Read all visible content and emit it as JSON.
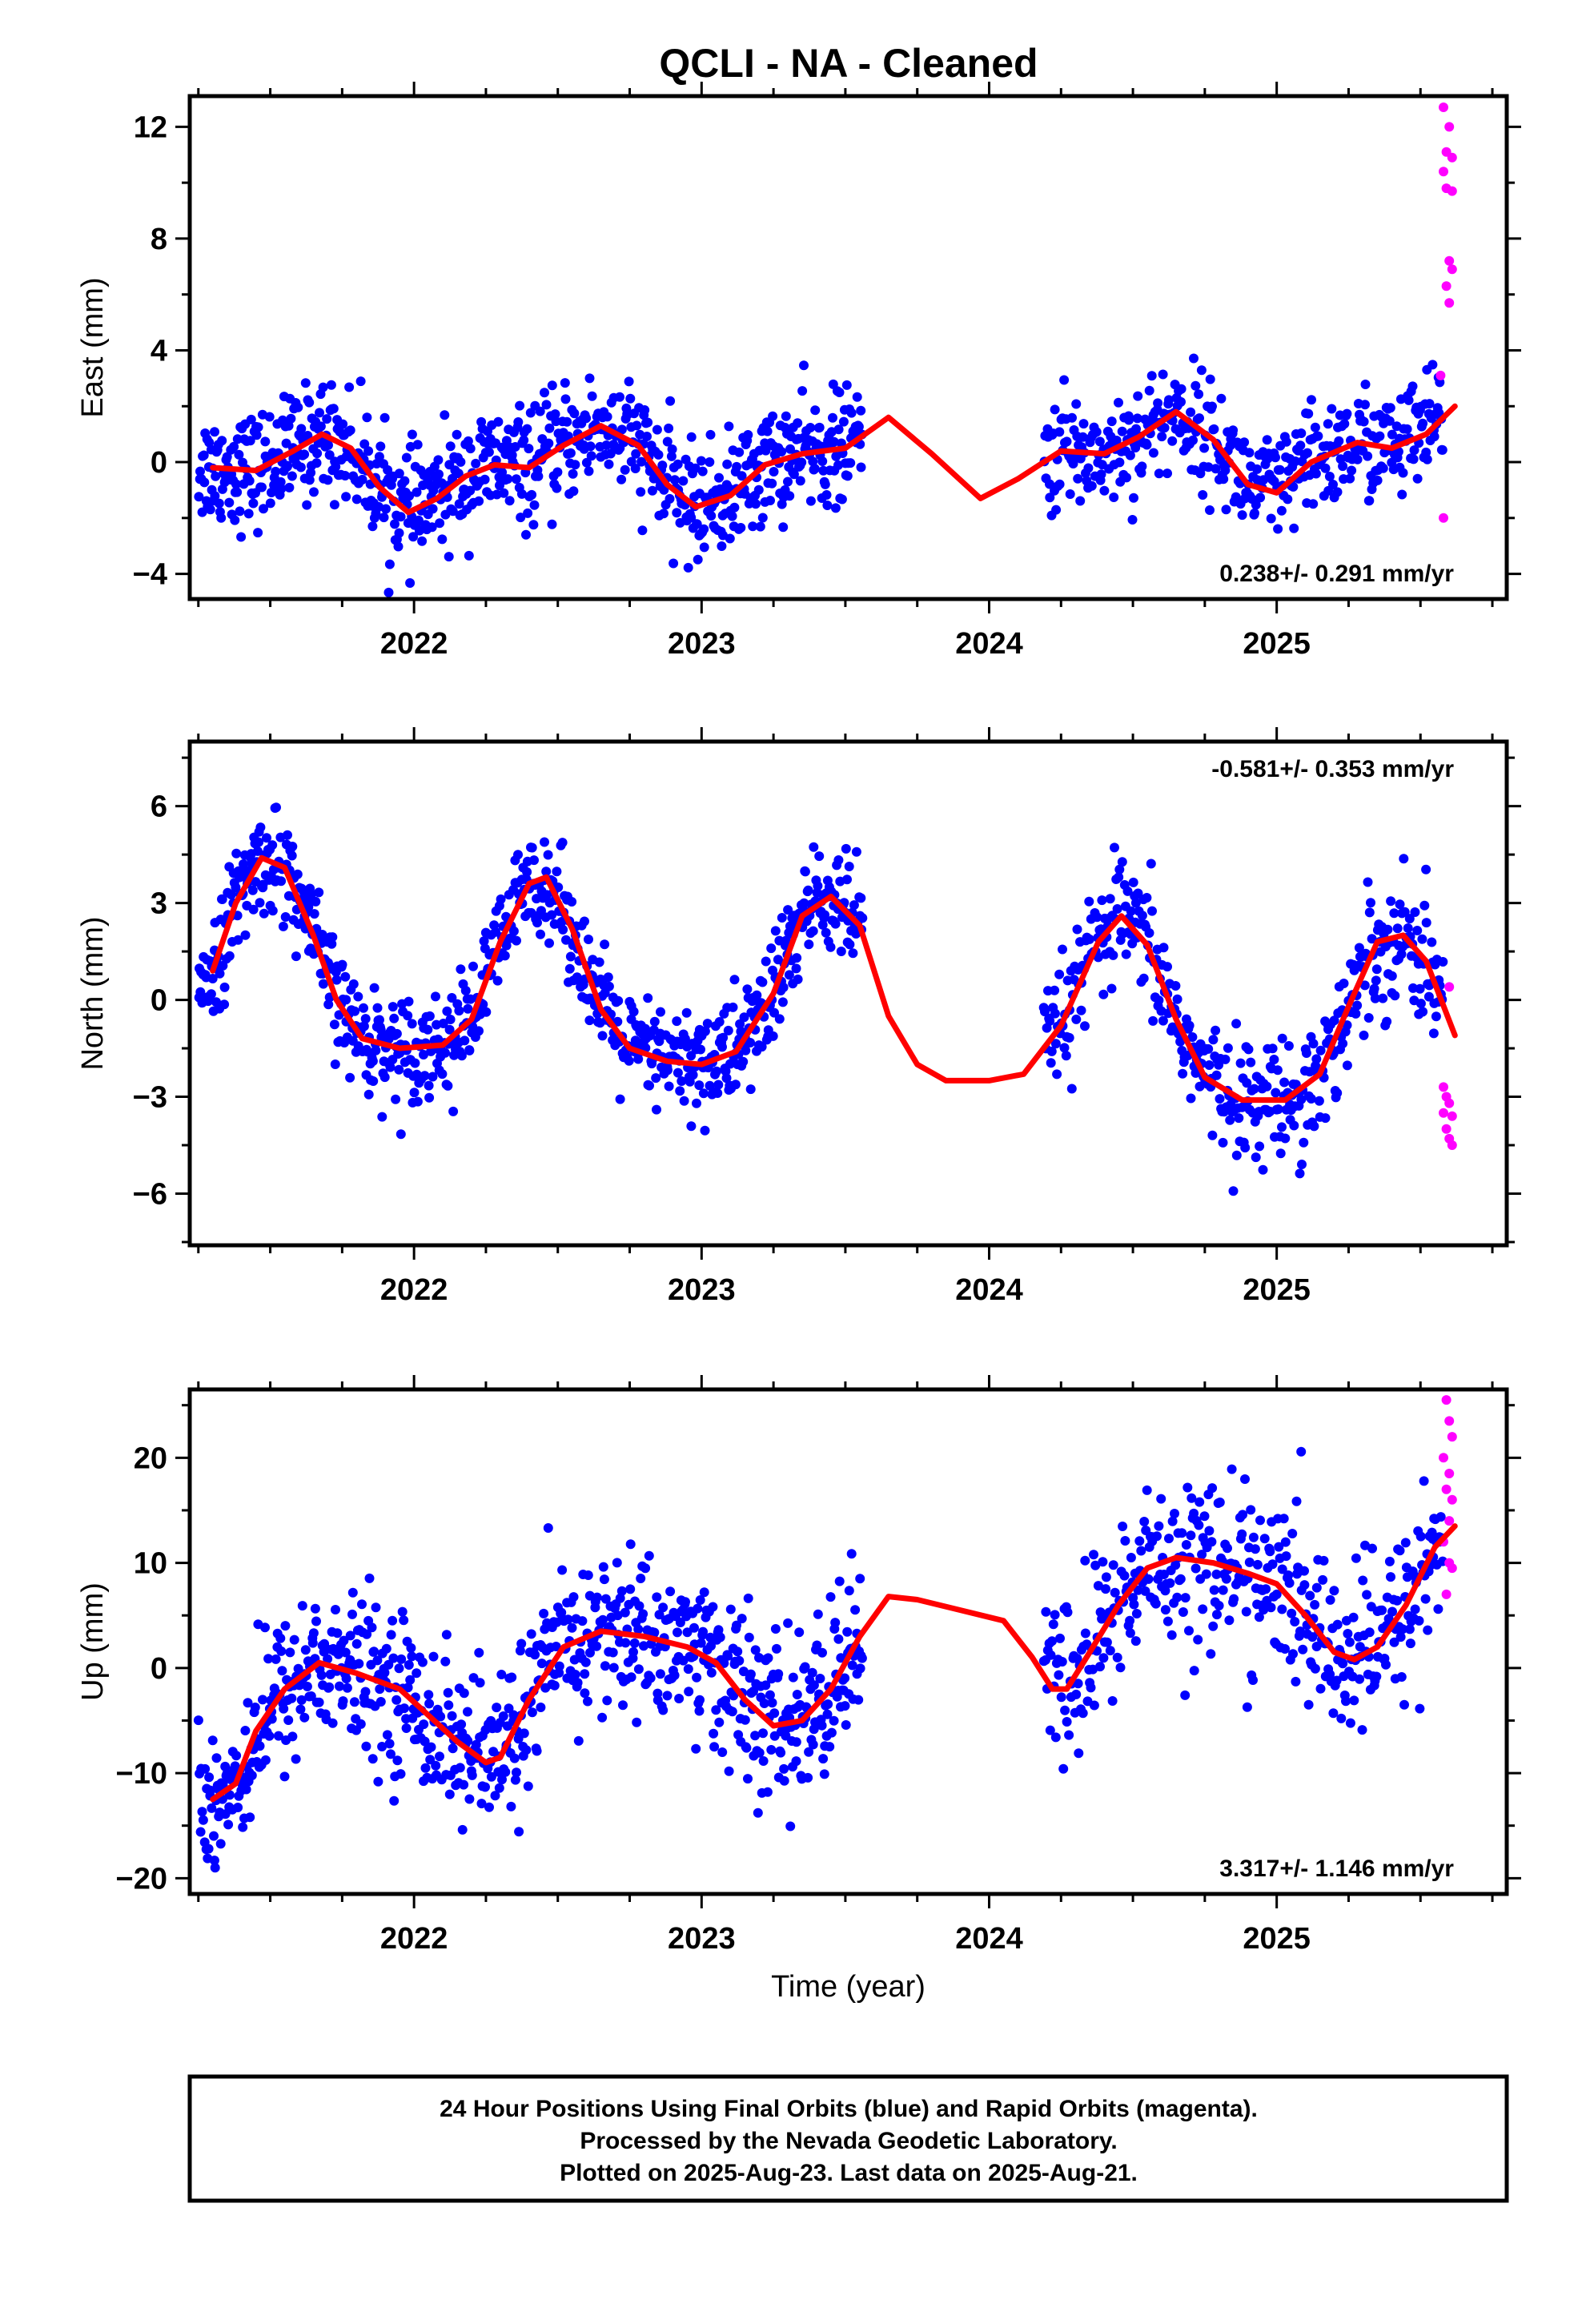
{
  "title": "QCLI  - NA - Cleaned",
  "footer": {
    "line1": "24 Hour Positions Using Final Orbits (blue) and Rapid Orbits (magenta).",
    "line2": "Processed by the Nevada Geodetic Laboratory.",
    "line3": "Plotted on 2025-Aug-23. Last data on 2025-Aug-21."
  },
  "colors": {
    "final": "#0000ff",
    "rapid": "#ff00ff",
    "model": "#ff0000",
    "axis": "#000000"
  },
  "chart_data": [
    {
      "type": "scatter",
      "ylabel": "East (mm)",
      "xlabel": "",
      "xlim": [
        2021.22,
        2025.8
      ],
      "ylim": [
        -4.9,
        13.1
      ],
      "xticks": [
        2022,
        2023,
        2024,
        2025
      ],
      "yticks": [
        -4,
        0,
        4,
        8,
        12
      ],
      "rate": "0.238+/- 0.291 mm/yr",
      "rate_position": "bottom-right",
      "gaps": [
        [
          2023.56,
          2024.19
        ]
      ],
      "model_curve": [
        [
          2021.3,
          -0.2
        ],
        [
          2021.45,
          -0.3
        ],
        [
          2021.58,
          0.4
        ],
        [
          2021.68,
          1.0
        ],
        [
          2021.78,
          0.5
        ],
        [
          2021.88,
          -0.9
        ],
        [
          2021.98,
          -1.8
        ],
        [
          2022.08,
          -1.3
        ],
        [
          2022.18,
          -0.5
        ],
        [
          2022.28,
          -0.1
        ],
        [
          2022.4,
          -0.2
        ],
        [
          2022.52,
          0.6
        ],
        [
          2022.65,
          1.3
        ],
        [
          2022.78,
          0.6
        ],
        [
          2022.88,
          -0.8
        ],
        [
          2022.98,
          -1.6
        ],
        [
          2023.1,
          -1.2
        ],
        [
          2023.22,
          -0.1
        ],
        [
          2023.35,
          0.3
        ],
        [
          2023.5,
          0.5
        ],
        [
          2023.65,
          1.6
        ],
        [
          2023.8,
          0.3
        ],
        [
          2023.97,
          -1.3
        ],
        [
          2024.1,
          -0.6
        ],
        [
          2024.25,
          0.4
        ],
        [
          2024.4,
          0.3
        ],
        [
          2024.52,
          0.9
        ],
        [
          2024.65,
          1.8
        ],
        [
          2024.78,
          0.8
        ],
        [
          2024.9,
          -0.8
        ],
        [
          2025.0,
          -1.1
        ],
        [
          2025.12,
          0.0
        ],
        [
          2025.28,
          0.7
        ],
        [
          2025.4,
          0.5
        ],
        [
          2025.52,
          1.0
        ],
        [
          2025.62,
          2.0
        ]
      ],
      "series": [
        {
          "seg": [
            2021.25,
            2021.96
          ],
          "base": 0.0,
          "amp": 1.1,
          "noise": 1.0,
          "n": 250
        },
        {
          "seg": [
            2021.96,
            2022.97
          ],
          "base": -0.1,
          "amp": 1.3,
          "noise": 1.0,
          "n": 330
        },
        {
          "seg": [
            2022.97,
            2023.56
          ],
          "base": 0.1,
          "amp": 1.2,
          "noise": 1.0,
          "n": 210
        },
        {
          "seg": [
            2024.19,
            2025.05
          ],
          "base": 0.5,
          "amp": 1.1,
          "noise": 1.0,
          "n": 250
        },
        {
          "seg": [
            2025.05,
            2025.58
          ],
          "base": 0.8,
          "amp": 0.6,
          "noise": 1.0,
          "n": 160
        }
      ],
      "rapid_points": [
        [
          2025.58,
          12.7
        ],
        [
          2025.6,
          12.0
        ],
        [
          2025.59,
          11.1
        ],
        [
          2025.61,
          10.9
        ],
        [
          2025.58,
          10.4
        ],
        [
          2025.59,
          9.8
        ],
        [
          2025.61,
          9.7
        ],
        [
          2025.6,
          7.2
        ],
        [
          2025.61,
          6.9
        ],
        [
          2025.59,
          6.3
        ],
        [
          2025.6,
          5.7
        ],
        [
          2025.57,
          3.1
        ],
        [
          2025.58,
          -2.0
        ]
      ]
    },
    {
      "type": "scatter",
      "ylabel": "North (mm)",
      "xlabel": "",
      "xlim": [
        2021.22,
        2025.8
      ],
      "ylim": [
        -7.6,
        8.0
      ],
      "xticks": [
        2022,
        2023,
        2024,
        2025
      ],
      "yticks": [
        -6,
        -3,
        0,
        3,
        6
      ],
      "rate": "-0.581+/- 0.353 mm/yr",
      "rate_position": "top-right",
      "gaps": [
        [
          2023.56,
          2024.19
        ]
      ],
      "model_curve": [
        [
          2021.3,
          0.9
        ],
        [
          2021.38,
          3.0
        ],
        [
          2021.47,
          4.4
        ],
        [
          2021.55,
          4.1
        ],
        [
          2021.65,
          2.0
        ],
        [
          2021.73,
          0.0
        ],
        [
          2021.82,
          -1.2
        ],
        [
          2021.95,
          -1.5
        ],
        [
          2022.1,
          -1.4
        ],
        [
          2022.2,
          -0.6
        ],
        [
          2022.3,
          1.8
        ],
        [
          2022.4,
          3.6
        ],
        [
          2022.46,
          3.8
        ],
        [
          2022.55,
          2.2
        ],
        [
          2022.65,
          -0.3
        ],
        [
          2022.75,
          -1.5
        ],
        [
          2022.88,
          -1.9
        ],
        [
          2023.0,
          -2.0
        ],
        [
          2023.12,
          -1.6
        ],
        [
          2023.25,
          0.2
        ],
        [
          2023.35,
          2.6
        ],
        [
          2023.45,
          3.2
        ],
        [
          2023.55,
          2.3
        ],
        [
          2023.65,
          -0.5
        ],
        [
          2023.75,
          -2.0
        ],
        [
          2023.85,
          -2.5
        ],
        [
          2024.0,
          -2.5
        ],
        [
          2024.12,
          -2.3
        ],
        [
          2024.25,
          -0.8
        ],
        [
          2024.38,
          1.8
        ],
        [
          2024.46,
          2.6
        ],
        [
          2024.55,
          1.7
        ],
        [
          2024.65,
          -0.6
        ],
        [
          2024.75,
          -2.4
        ],
        [
          2024.88,
          -3.1
        ],
        [
          2025.03,
          -3.1
        ],
        [
          2025.15,
          -2.3
        ],
        [
          2025.25,
          -0.2
        ],
        [
          2025.35,
          1.8
        ],
        [
          2025.44,
          2.0
        ],
        [
          2025.52,
          1.2
        ],
        [
          2025.62,
          -1.1
        ]
      ],
      "series": [
        {
          "seg": [
            2021.25,
            2021.96
          ],
          "base": 2.0,
          "amp": 3.2,
          "noise": 0.8,
          "n": 250
        },
        {
          "seg": [
            2021.96,
            2022.97
          ],
          "base": 1.0,
          "amp": 3.0,
          "noise": 0.8,
          "n": 330
        },
        {
          "seg": [
            2022.97,
            2023.56
          ],
          "base": 0.0,
          "amp": 2.7,
          "noise": 0.9,
          "n": 210
        },
        {
          "seg": [
            2024.19,
            2025.05
          ],
          "base": -0.8,
          "amp": 3.0,
          "noise": 0.9,
          "n": 250
        },
        {
          "seg": [
            2025.05,
            2025.58
          ],
          "base": -1.5,
          "amp": 2.5,
          "noise": 1.0,
          "n": 160
        }
      ],
      "rapid_points": [
        [
          2025.58,
          -2.7
        ],
        [
          2025.59,
          -3.0
        ],
        [
          2025.6,
          -3.2
        ],
        [
          2025.58,
          -3.5
        ],
        [
          2025.61,
          -3.6
        ],
        [
          2025.59,
          -4.0
        ],
        [
          2025.6,
          -4.3
        ],
        [
          2025.61,
          -4.5
        ],
        [
          2025.6,
          0.4
        ]
      ]
    },
    {
      "type": "scatter",
      "ylabel": "Up (mm)",
      "xlabel": "Time (year)",
      "xlim": [
        2021.22,
        2025.8
      ],
      "ylim": [
        -21.5,
        26.5
      ],
      "xticks": [
        2022,
        2023,
        2024,
        2025
      ],
      "yticks": [
        -20,
        -10,
        0,
        10,
        20
      ],
      "rate": "3.317+/- 1.146 mm/yr",
      "rate_position": "bottom-right",
      "gaps": [
        [
          2023.56,
          2024.19
        ]
      ],
      "model_curve": [
        [
          2021.3,
          -12.5
        ],
        [
          2021.38,
          -11.0
        ],
        [
          2021.45,
          -6.0
        ],
        [
          2021.55,
          -2.0
        ],
        [
          2021.67,
          0.5
        ],
        [
          2021.8,
          -0.5
        ],
        [
          2021.95,
          -2.0
        ],
        [
          2022.05,
          -4.5
        ],
        [
          2022.15,
          -7.0
        ],
        [
          2022.25,
          -9.0
        ],
        [
          2022.3,
          -8.5
        ],
        [
          2022.4,
          -3.0
        ],
        [
          2022.52,
          2.0
        ],
        [
          2022.65,
          3.5
        ],
        [
          2022.8,
          3.0
        ],
        [
          2022.95,
          2.0
        ],
        [
          2023.05,
          0.5
        ],
        [
          2023.15,
          -3.0
        ],
        [
          2023.25,
          -5.5
        ],
        [
          2023.35,
          -5.0
        ],
        [
          2023.45,
          -2.0
        ],
        [
          2023.55,
          3.0
        ],
        [
          2023.65,
          6.8
        ],
        [
          2023.75,
          6.5
        ],
        [
          2023.9,
          5.5
        ],
        [
          2024.05,
          4.5
        ],
        [
          2024.15,
          1.0
        ],
        [
          2024.22,
          -2.0
        ],
        [
          2024.27,
          -2.0
        ],
        [
          2024.35,
          1.5
        ],
        [
          2024.45,
          6.0
        ],
        [
          2024.55,
          9.5
        ],
        [
          2024.65,
          10.5
        ],
        [
          2024.78,
          10.0
        ],
        [
          2024.9,
          9.0
        ],
        [
          2025.0,
          8.0
        ],
        [
          2025.1,
          5.0
        ],
        [
          2025.2,
          1.5
        ],
        [
          2025.27,
          0.8
        ],
        [
          2025.35,
          2.0
        ],
        [
          2025.45,
          6.0
        ],
        [
          2025.55,
          11.5
        ],
        [
          2025.62,
          13.5
        ]
      ],
      "series": [
        {
          "seg": [
            2021.25,
            2021.96
          ],
          "base": -2.0,
          "amp": 6.0,
          "noise": 3.6,
          "n": 250
        },
        {
          "seg": [
            2021.96,
            2022.97
          ],
          "base": -2.0,
          "amp": 6.0,
          "noise": 3.8,
          "n": 330
        },
        {
          "seg": [
            2022.97,
            2023.56
          ],
          "base": -2.0,
          "amp": 6.0,
          "noise": 4.0,
          "n": 210
        },
        {
          "seg": [
            2024.19,
            2025.05
          ],
          "base": 6.0,
          "amp": 5.0,
          "noise": 4.2,
          "n": 250
        },
        {
          "seg": [
            2025.05,
            2025.58
          ],
          "base": 5.0,
          "amp": 5.0,
          "noise": 4.0,
          "n": 160
        }
      ],
      "rapid_points": [
        [
          2025.59,
          25.5
        ],
        [
          2025.6,
          23.5
        ],
        [
          2025.61,
          22.0
        ],
        [
          2025.58,
          20.0
        ],
        [
          2025.6,
          18.5
        ],
        [
          2025.59,
          17.0
        ],
        [
          2025.61,
          16.0
        ],
        [
          2025.6,
          14.0
        ],
        [
          2025.58,
          12.0
        ],
        [
          2025.6,
          10.0
        ],
        [
          2025.61,
          9.5
        ],
        [
          2025.59,
          7.0
        ]
      ]
    }
  ]
}
